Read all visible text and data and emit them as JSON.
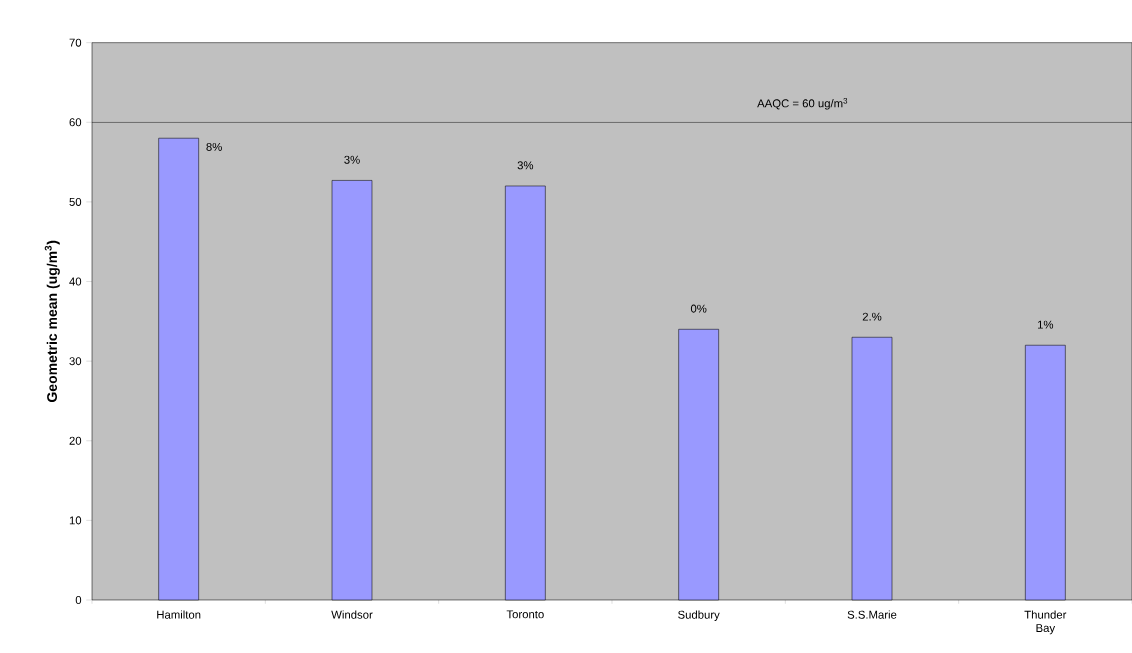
{
  "chart_data": {
    "type": "bar",
    "ylabel": "Geometric mean (ug/m$^{3}$)",
    "categories": [
      "Hamilton",
      "Windsor",
      "Toronto",
      "Sudbury",
      "S.S.Marie",
      "Thunder Bay"
    ],
    "values": [
      58,
      52.7,
      52,
      34,
      33,
      32
    ],
    "annotations": [
      {
        "text": "8%",
        "x": "Hamilton",
        "y": 58
      },
      {
        "text": "3%",
        "x": "Windsor",
        "y": 52.7
      },
      {
        "text": "3%",
        "x": "Toronto",
        "y": 52
      },
      {
        "text": "0%",
        "x": "Sudbury",
        "y": 34
      },
      {
        "text": "2.%",
        "x": "S.S.Marie",
        "y": 33
      },
      {
        "text": "1%",
        "x": "Thunder Bay",
        "y": 32
      }
    ],
    "color": "#9999ff",
    "ylim": [
      0,
      70
    ],
    "yticks": [
      0,
      10,
      20,
      30,
      40,
      50,
      60,
      70
    ],
    "ref_lines": [
      {
        "axis": "y",
        "value": 60,
        "label": "AAQC = 60 ug/m$^{3}$",
        "color": "#000000"
      }
    ],
    "grid": false
  }
}
